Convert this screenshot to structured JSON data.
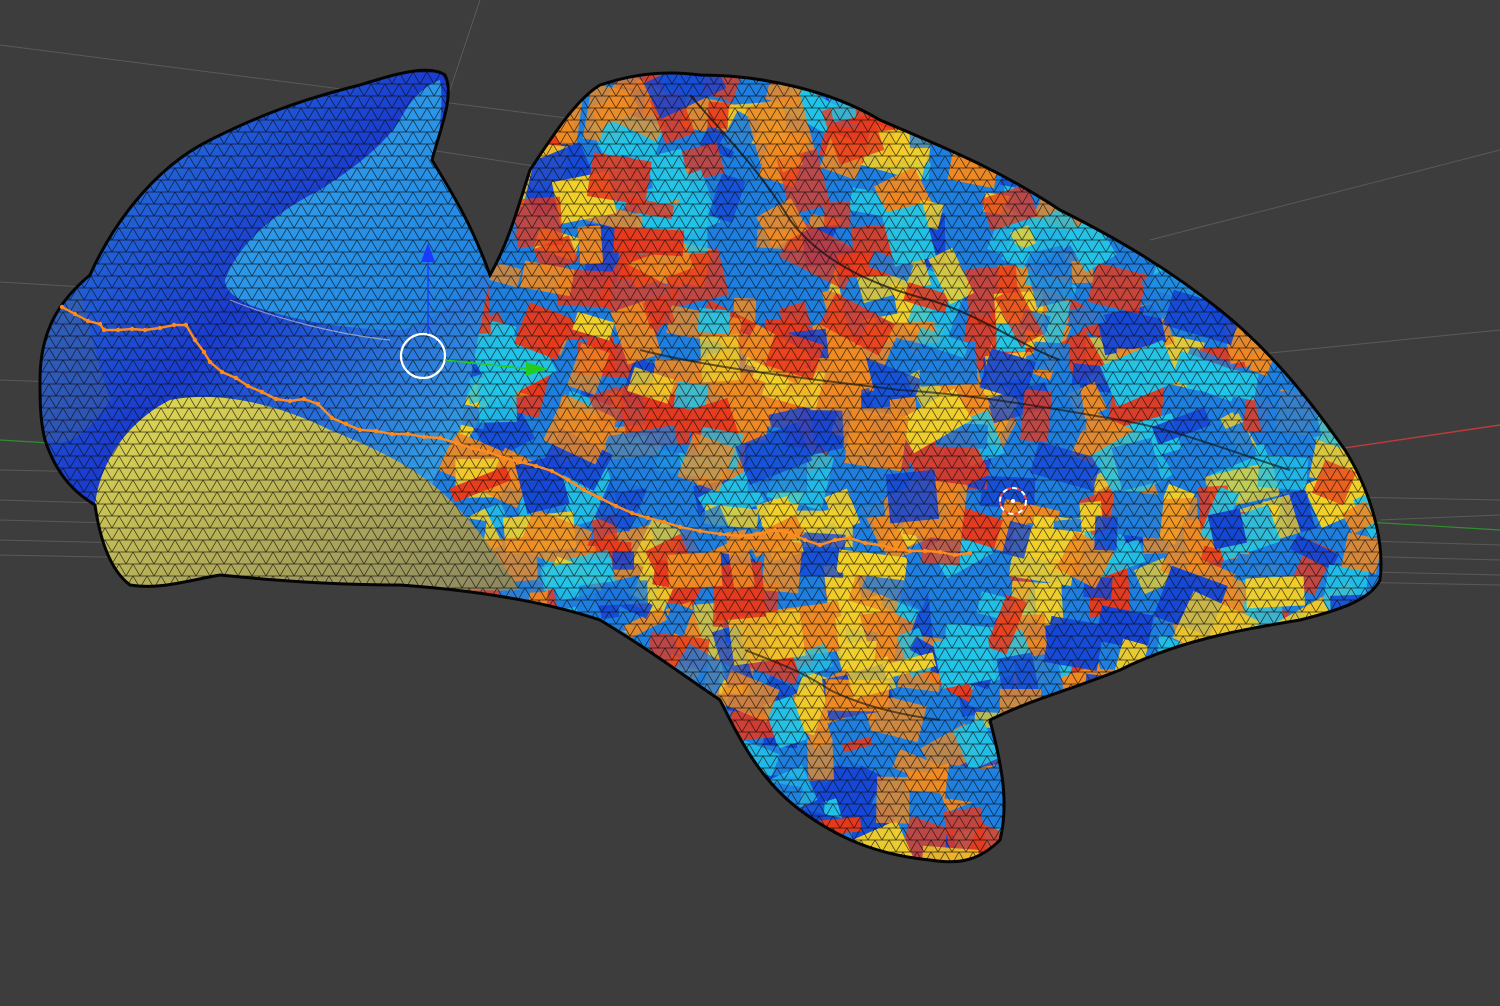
{
  "viewport": {
    "mode": "3d-viewport",
    "background_color": "#3d3d3d",
    "grid_line_color": "#5a5a5a",
    "x_axis_color": "#c03a3a",
    "y_axis_color": "#2f8f2f"
  },
  "mesh": {
    "object": "cortical-surface-mesh",
    "display": "wireframe-over-solid",
    "wire_color": "#0a0a0a",
    "palette": [
      "#1546d6",
      "#1e7fe0",
      "#22c4e8",
      "#f2d02a",
      "#f08a22",
      "#e8391c"
    ],
    "gradient_region_colors": [
      "#1a3ccf",
      "#2a8ae0",
      "#3fc8ec",
      "#d8cf3a"
    ]
  },
  "path": {
    "color": "#ff8a1e",
    "vertex_marker": "dot"
  },
  "gizmo": {
    "transform_circle_color": "#ffffff",
    "x_arrow_color": "#22cc22",
    "z_arrow_color": "#1a3aff"
  },
  "cursor_3d": {
    "outer_color": "#ffffff",
    "inner_color": "#ff3a3a"
  },
  "icons": {
    "gizmo_center": "circle-outline-icon",
    "gizmo_green_arrow": "arrow-right-icon",
    "gizmo_blue_arrow": "arrow-up-icon",
    "cursor": "crosshair-icon"
  }
}
